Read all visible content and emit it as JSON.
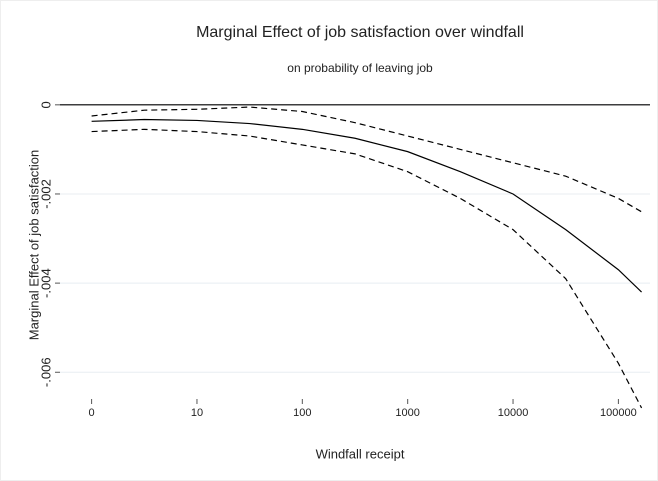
{
  "chart_data": {
    "type": "line",
    "title": "Marginal Effect of job satisfaction over windfall",
    "subtitle": "on probability of leaving job",
    "xlabel": "Windfall receipt",
    "ylabel": "Marginal Effect of job satisfaction",
    "x": [
      0,
      0.5,
      1,
      1.5,
      2,
      2.5,
      3,
      3.5,
      4,
      4.5,
      5,
      5.22
    ],
    "series": [
      {
        "color": "#000000",
        "style": "solid",
        "values": [
          -0.00037,
          -0.00033,
          -0.00035,
          -0.00042,
          -0.00055,
          -0.00075,
          -0.00105,
          -0.0015,
          -0.002,
          -0.0028,
          -0.0037,
          -0.0042
        ]
      },
      {
        "color": "#000000",
        "style": "dashed",
        "values": [
          -0.00025,
          -0.00012,
          -0.0001,
          -5e-05,
          -0.00015,
          -0.0004,
          -0.0007,
          -0.001,
          -0.0013,
          -0.0016,
          -0.0021,
          -0.0024
        ]
      },
      {
        "color": "#000000",
        "style": "dashed",
        "values": [
          -0.0006,
          -0.00055,
          -0.0006,
          -0.0007,
          -0.0009,
          -0.0011,
          -0.0015,
          -0.0021,
          -0.0028,
          -0.0039,
          -0.0058,
          -0.0068
        ]
      }
    ],
    "xlim": [
      -0.3,
      5.3
    ],
    "xticks": [
      0,
      {
        "value": 1,
        "label": "10"
      },
      {
        "value": 2,
        "label": "100"
      },
      {
        "value": 3,
        "label": "1000"
      },
      {
        "value": 4,
        "label": "10000"
      },
      {
        "value": 5,
        "label": "100000"
      }
    ],
    "ylim": [
      -0.0066,
      0.0004
    ],
    "yticks": [
      {
        "value": 0,
        "label": "0"
      },
      {
        "value": -0.002,
        "label": "-.002"
      },
      {
        "value": -0.004,
        "label": "-.004"
      },
      {
        "value": -0.006,
        "label": "-.006"
      }
    ],
    "hline": 0,
    "grid": true
  }
}
